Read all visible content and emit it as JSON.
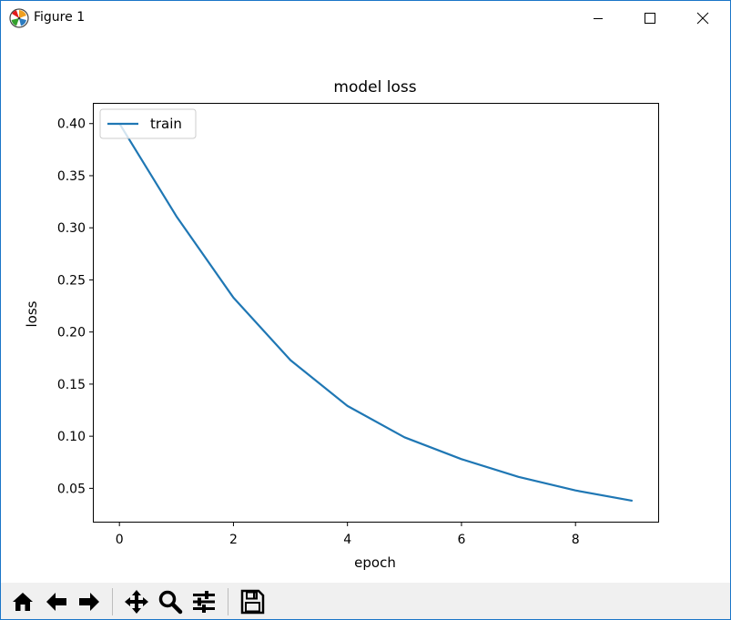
{
  "window": {
    "title": "Figure 1"
  },
  "chart_data": {
    "type": "line",
    "title": "model loss",
    "xlabel": "epoch",
    "ylabel": "loss",
    "xlim": [
      -0.45,
      9.45
    ],
    "ylim": [
      0.018,
      0.419
    ],
    "xticks": [
      0,
      2,
      4,
      6,
      8
    ],
    "xtick_labels": [
      "0",
      "2",
      "4",
      "6",
      "8"
    ],
    "yticks": [
      0.05,
      0.1,
      0.15,
      0.2,
      0.25,
      0.3,
      0.35,
      0.4
    ],
    "ytick_labels": [
      "0.05",
      "0.10",
      "0.15",
      "0.20",
      "0.25",
      "0.30",
      "0.35",
      "0.40"
    ],
    "grid": false,
    "legend": {
      "placement": "upper-left"
    },
    "series": [
      {
        "name": "train",
        "color": "#1f77b4",
        "x": [
          0,
          1,
          2,
          3,
          4,
          5,
          6,
          7,
          8,
          9
        ],
        "values": [
          0.4,
          0.311,
          0.233,
          0.173,
          0.129,
          0.099,
          0.078,
          0.061,
          0.048,
          0.038
        ]
      }
    ]
  },
  "toolbar": {
    "buttons": [
      "home-icon",
      "back-icon",
      "forward-icon",
      "pan-icon",
      "zoom-icon",
      "configure-subplots-icon",
      "save-icon"
    ]
  }
}
